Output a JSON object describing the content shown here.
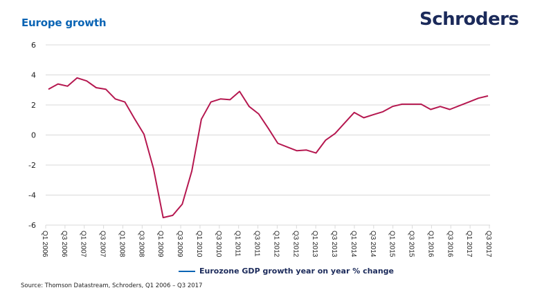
{
  "header": {
    "title": "Europe growth",
    "logo_text": "Schroders"
  },
  "footer": {
    "source": "Source: Thomson Datastream, Schroders, Q1 2006 – Q3 2017"
  },
  "colors": {
    "title": "#0a64b4",
    "logo": "#1b2a5a",
    "series_line": "#b5174f",
    "legend_swatch": "#0a64b4",
    "gridline": "#d9d9d9"
  },
  "chart_data": {
    "type": "line",
    "title": "Europe growth",
    "xlabel": "",
    "ylabel": "",
    "ylim": [
      -6,
      6
    ],
    "yticks": [
      6,
      4,
      2,
      0,
      -2,
      -4,
      -6
    ],
    "grid": true,
    "legend_position": "bottom-center",
    "x_tick_labels": [
      "Q1 2006",
      "Q3 2006",
      "Q1 2007",
      "Q3 2007",
      "Q1 2008",
      "Q3 2008",
      "Q1 2009",
      "Q3 2009",
      "Q1 2010",
      "Q3 2010",
      "Q1 2011",
      "Q3 2011",
      "Q1 2012",
      "Q3 2012",
      "Q1 2013",
      "Q3 2013",
      "Q1 2014",
      "Q3 2014",
      "Q1 2015",
      "Q3 2015",
      "Q1 2016",
      "Q3 2016",
      "Q1 2017",
      "Q3 2017"
    ],
    "x": [
      "Q1 2006",
      "Q2 2006",
      "Q3 2006",
      "Q4 2006",
      "Q1 2007",
      "Q2 2007",
      "Q3 2007",
      "Q4 2007",
      "Q1 2008",
      "Q2 2008",
      "Q3 2008",
      "Q4 2008",
      "Q1 2009",
      "Q2 2009",
      "Q3 2009",
      "Q4 2009",
      "Q1 2010",
      "Q2 2010",
      "Q3 2010",
      "Q4 2010",
      "Q1 2011",
      "Q2 2011",
      "Q3 2011",
      "Q4 2011",
      "Q1 2012",
      "Q2 2012",
      "Q3 2012",
      "Q4 2012",
      "Q1 2013",
      "Q2 2013",
      "Q3 2013",
      "Q4 2013",
      "Q1 2014",
      "Q2 2014",
      "Q3 2014",
      "Q4 2014",
      "Q1 2015",
      "Q2 2015",
      "Q3 2015",
      "Q4 2015",
      "Q1 2016",
      "Q2 2016",
      "Q3 2016",
      "Q4 2016",
      "Q1 2017",
      "Q2 2017",
      "Q3 2017"
    ],
    "series": [
      {
        "name": "Eurozone GDP growth year on year % change",
        "values": [
          3.05,
          3.4,
          3.25,
          3.8,
          3.6,
          3.15,
          3.05,
          2.4,
          2.2,
          1.1,
          0.05,
          -2.25,
          -5.5,
          -5.35,
          -4.6,
          -2.4,
          1.05,
          2.2,
          2.4,
          2.35,
          2.9,
          1.9,
          1.4,
          0.45,
          -0.55,
          -0.8,
          -1.05,
          -1.0,
          -1.2,
          -0.35,
          0.1,
          0.8,
          1.5,
          1.15,
          1.35,
          1.55,
          1.9,
          2.05,
          2.05,
          2.05,
          1.7,
          1.9,
          1.7,
          1.95,
          2.2,
          2.45,
          2.6
        ]
      }
    ]
  }
}
